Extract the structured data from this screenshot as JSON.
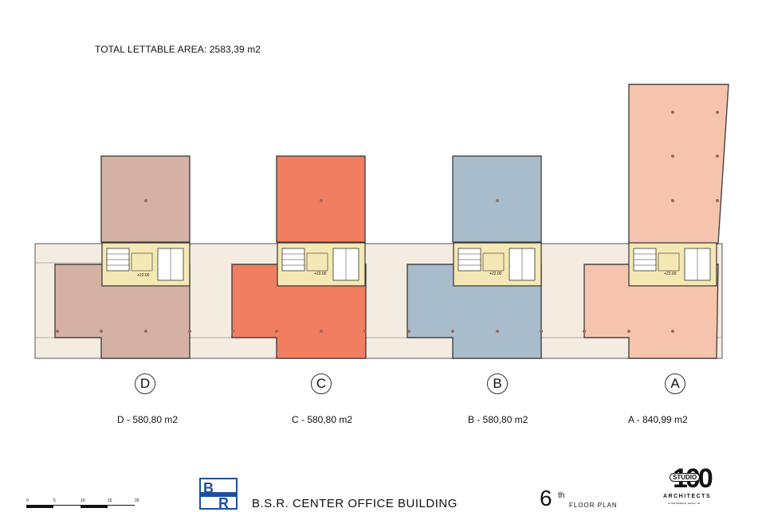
{
  "header": {
    "total_lettable_area": "TOTAL LETTABLE AREA:  2583,39 m2"
  },
  "units": [
    {
      "id": "D",
      "label": "D - 580,80 m2",
      "color": "#d5b0a4",
      "level": "+22.00"
    },
    {
      "id": "C",
      "label": "C - 580,80 m2",
      "color": "#f17e60",
      "level": "+22.00"
    },
    {
      "id": "B",
      "label": "B - 580,80 m2",
      "color": "#a8bccb",
      "level": "+22.00"
    },
    {
      "id": "A",
      "label": "A - 840,99 m2",
      "color": "#f6c4ad",
      "level": "+22.00"
    }
  ],
  "colors": {
    "corridor": "#f4ece1",
    "core": "#f4e8b4",
    "outline": "#555555",
    "column": "#9e6a5a"
  },
  "scale": {
    "ticks": [
      "0",
      "5",
      "10",
      "15",
      "20"
    ]
  },
  "footer": {
    "client_logo_text": [
      "B",
      "R"
    ],
    "project_title": "B.S.R. CENTER OFFICE BUILDING",
    "floor_number": "6",
    "floor_suffix": "th",
    "floor_caption": "FLOOR PLAN"
  },
  "architect_logo": {
    "number": "100",
    "word": "STUDIO",
    "tagline": "ARCHITECTS",
    "address": "H-1011 Budapest, Iskola u. 36."
  }
}
